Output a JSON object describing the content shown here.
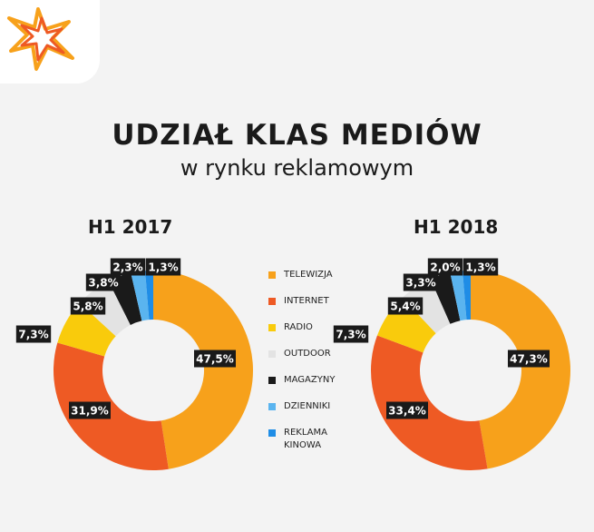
{
  "title": "UDZIAŁ KLAS MEDIÓW",
  "subtitle": "w rynku reklamowym",
  "colors": {
    "TELEWIZJA": "#f7a11b",
    "INTERNET": "#ee5a24",
    "RADIO": "#f9cb0c",
    "OUTDOOR": "#e3e3e3",
    "MAGAZYNY": "#1a1a1a",
    "DZIENNIKI": "#5ab4ef",
    "REKLAMA KINOWA": "#1f8de6"
  },
  "legend": [
    {
      "label": "TELEWIZJA"
    },
    {
      "label": "INTERNET"
    },
    {
      "label": "RADIO"
    },
    {
      "label": "OUTDOOR"
    },
    {
      "label": "MAGAZYNY"
    },
    {
      "label": "DZIENNIKI"
    },
    {
      "label": "REKLAMA KINOWA"
    }
  ],
  "chart_data": [
    {
      "type": "pie",
      "title": "H1 2017",
      "categories": [
        "TELEWIZJA",
        "INTERNET",
        "RADIO",
        "OUTDOOR",
        "MAGAZYNY",
        "DZIENNIKI",
        "REKLAMA KINOWA"
      ],
      "values": [
        47.5,
        31.9,
        7.3,
        5.8,
        3.8,
        2.3,
        1.3
      ],
      "labels": [
        "47,5%",
        "31,9%",
        "7,3%",
        "5,8%",
        "3,8%",
        "2,3%",
        "1,3%"
      ]
    },
    {
      "type": "pie",
      "title": "H1 2018",
      "categories": [
        "TELEWIZJA",
        "INTERNET",
        "RADIO",
        "OUTDOOR",
        "MAGAZYNY",
        "DZIENNIKI",
        "REKLAMA KINOWA"
      ],
      "values": [
        47.3,
        33.4,
        7.3,
        5.4,
        3.3,
        2.0,
        1.3
      ],
      "labels": [
        "47,3%",
        "33,4%",
        "7,3%",
        "5,4%",
        "3,3%",
        "2,0%",
        "1,3%"
      ]
    }
  ]
}
